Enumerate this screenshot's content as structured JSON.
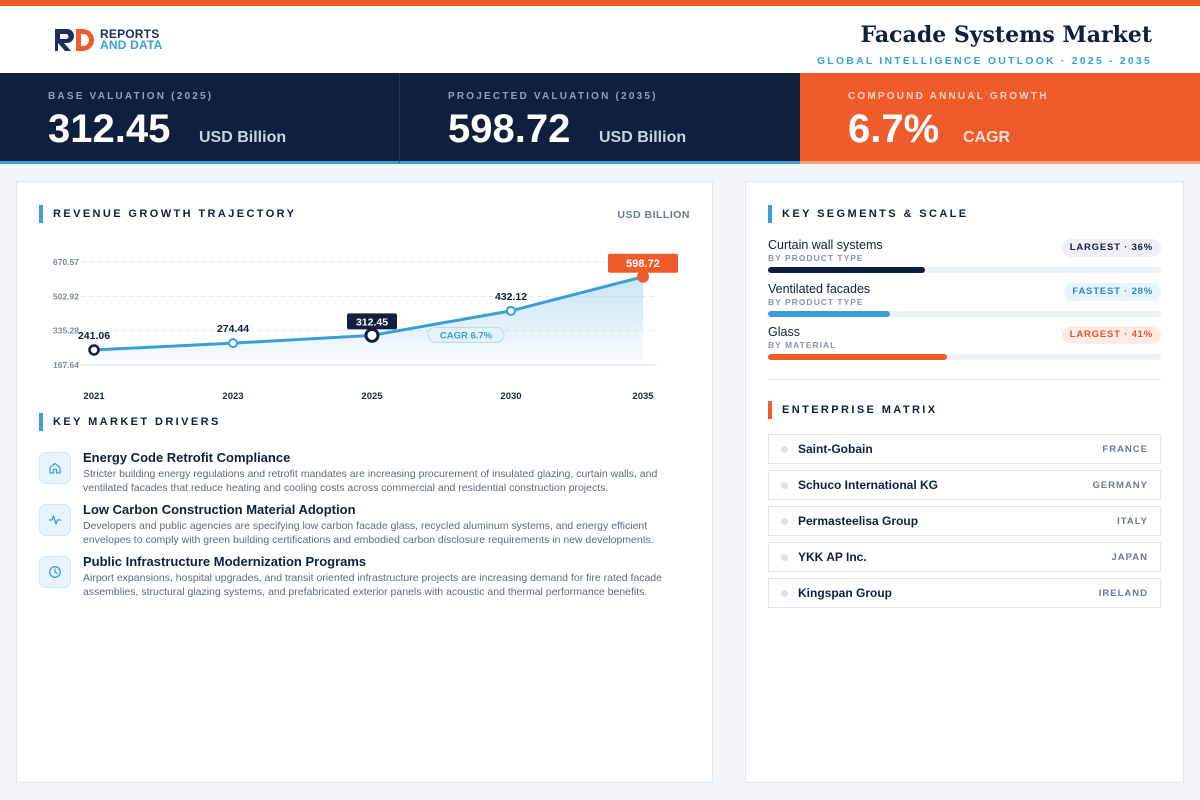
{
  "header": {
    "logo": {
      "line1": "REPORTS",
      "line2": "AND DATA",
      "mark": "RD"
    },
    "title": "Facade Systems Market",
    "subtitle": "GLOBAL INTELLIGENCE OUTLOOK · 2025 - 2035"
  },
  "kpis": [
    {
      "label": "BASE VALUATION (2025)",
      "value": "312.45",
      "unit": "USD Billion"
    },
    {
      "label": "PROJECTED VALUATION (2035)",
      "value": "598.72",
      "unit": "USD Billion"
    },
    {
      "label": "COMPOUND ANNUAL GROWTH",
      "value": "6.7%",
      "unit": "CAGR"
    }
  ],
  "chart_section": {
    "title": "REVENUE GROWTH TRAJECTORY",
    "unit": "USD BILLION"
  },
  "chart_data": {
    "type": "area",
    "title": "REVENUE GROWTH TRAJECTORY",
    "ylabel": "USD BILLION",
    "categories": [
      "2021",
      "2023",
      "2025",
      "2030",
      "2035"
    ],
    "values": [
      241.06,
      274.44,
      312.45,
      432.12,
      598.72
    ],
    "data_labels": [
      "241.06",
      "274.44",
      "312.45",
      "432.12",
      "598.72"
    ],
    "y_ticks": [
      167.64,
      335.28,
      502.92,
      670.57
    ],
    "y_tick_labels": [
      "167.64",
      "335.28",
      "502.92",
      "670.57"
    ],
    "ylim": [
      167.64,
      670.57
    ],
    "annotation": "CAGR 6.7%",
    "grid": true,
    "colors": {
      "line": "#3b9fd6",
      "highlight": "#ef5b2b",
      "base_marker": "#0f1f3d"
    }
  },
  "drivers_section": {
    "title": "KEY MARKET DRIVERS",
    "items": [
      {
        "icon": "home-icon",
        "title": "Energy Code Retrofit Compliance",
        "text": "Stricter building energy regulations and retrofit mandates are increasing procurement of insulated glazing, curtain walls, and ventilated facades that reduce heating and cooling costs across commercial and residential construction projects."
      },
      {
        "icon": "activity-icon",
        "title": "Low Carbon Construction Material Adoption",
        "text": "Developers and public agencies are specifying low carbon facade glass, recycled aluminum systems, and energy efficient envelopes to comply with green building certifications and embodied carbon disclosure requirements in new developments."
      },
      {
        "icon": "clock-icon",
        "title": "Public Infrastructure Modernization Programs",
        "text": "Airport expansions, hospital upgrades, and transit oriented infrastructure projects are increasing demand for fire rated facade assemblies, structural glazing systems, and prefabricated exterior panels with acoustic and thermal performance benefits."
      }
    ]
  },
  "segments_section": {
    "title": "KEY SEGMENTS & SCALE",
    "items": [
      {
        "name": "Curtain wall systems",
        "sub": "BY PRODUCT TYPE",
        "badge": "LARGEST · 36%",
        "share": 0.36,
        "color": "#0f1f3d",
        "badge_bg": "#eef1f5",
        "badge_color": "#0f1f3d"
      },
      {
        "name": "Ventilated facades",
        "sub": "BY PRODUCT TYPE",
        "badge": "FASTEST · 28%",
        "share": 0.28,
        "color": "#3b9fd6",
        "badge_bg": "#e6f3fb",
        "badge_color": "#2a8cc4"
      },
      {
        "name": "Glass",
        "sub": "BY MATERIAL",
        "badge": "LARGEST · 41%",
        "share": 0.41,
        "color": "#ef5b2b",
        "badge_bg": "#fdece5",
        "badge_color": "#e0552a"
      }
    ]
  },
  "enterprise_section": {
    "title": "ENTERPRISE MATRIX",
    "items": [
      {
        "name": "Saint-Gobain",
        "country": "FRANCE",
        "highlight": true
      },
      {
        "name": "Schuco International KG",
        "country": "GERMANY",
        "highlight": true
      },
      {
        "name": "Permasteelisa Group",
        "country": "ITALY",
        "highlight": false
      },
      {
        "name": "YKK AP Inc.",
        "country": "JAPAN",
        "highlight": false
      },
      {
        "name": "Kingspan Group",
        "country": "IRELAND",
        "highlight": false
      }
    ]
  }
}
